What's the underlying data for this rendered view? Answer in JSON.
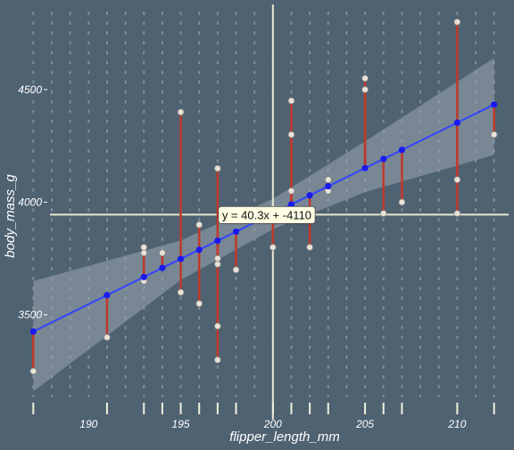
{
  "chart_data": {
    "type": "scatter",
    "title": "",
    "xlabel": "flipper_length_mm",
    "ylabel": "body_mass_g",
    "xlim": [
      186.5,
      212.5
    ],
    "ylim": [
      3130,
      4850
    ],
    "xticks": [
      190,
      195,
      200,
      205,
      210
    ],
    "yticks": [
      3500,
      4000,
      4500
    ],
    "x_tick_labels": [
      "190",
      "195",
      "200",
      "205",
      "210"
    ],
    "y_tick_labels": [
      "3500",
      "4000",
      "4500"
    ],
    "grid": false,
    "points": [
      {
        "x": 187,
        "y": 3250
      },
      {
        "x": 191,
        "y": 3400
      },
      {
        "x": 193,
        "y": 3650
      },
      {
        "x": 193,
        "y": 3775
      },
      {
        "x": 193,
        "y": 3800
      },
      {
        "x": 194,
        "y": 3775
      },
      {
        "x": 195,
        "y": 3600
      },
      {
        "x": 195,
        "y": 4400
      },
      {
        "x": 196,
        "y": 3550
      },
      {
        "x": 196,
        "y": 3900
      },
      {
        "x": 197,
        "y": 3300
      },
      {
        "x": 197,
        "y": 3450
      },
      {
        "x": 197,
        "y": 3725
      },
      {
        "x": 197,
        "y": 3750
      },
      {
        "x": 197,
        "y": 4150
      },
      {
        "x": 198,
        "y": 3700
      },
      {
        "x": 200,
        "y": 3800
      },
      {
        "x": 201,
        "y": 3975
      },
      {
        "x": 201,
        "y": 4050
      },
      {
        "x": 201,
        "y": 4300
      },
      {
        "x": 201,
        "y": 4450
      },
      {
        "x": 202,
        "y": 3800
      },
      {
        "x": 203,
        "y": 4050
      },
      {
        "x": 203,
        "y": 4100
      },
      {
        "x": 205,
        "y": 4500
      },
      {
        "x": 205,
        "y": 4550
      },
      {
        "x": 206,
        "y": 3950
      },
      {
        "x": 207,
        "y": 4000
      },
      {
        "x": 210,
        "y": 3950
      },
      {
        "x": 210,
        "y": 4100
      },
      {
        "x": 210,
        "y": 4800
      },
      {
        "x": 212,
        "y": 4300
      }
    ],
    "regression": {
      "slope": 40.3,
      "intercept": -4110,
      "x_range": [
        187,
        212
      ]
    },
    "confidence_band": [
      {
        "x": 187,
        "lo": 3160,
        "hi": 3650
      },
      {
        "x": 195,
        "lo": 3655,
        "hi": 3830
      },
      {
        "x": 200,
        "lo": 3880,
        "hi": 4015
      },
      {
        "x": 205,
        "lo": 4045,
        "hi": 4270
      },
      {
        "x": 212,
        "lo": 4210,
        "hi": 4640
      }
    ],
    "crosshair": {
      "x": 200,
      "y": 3945
    },
    "equation_label": "y = 40.3x + -4110",
    "colors": {
      "background": "#4f6272",
      "regression_line": "#3344ff",
      "fitted_point": "#1a1aee",
      "residual": "#c0392b",
      "point_fill": "#e9e3d7",
      "confidence_band": "#9aa6ae",
      "crosshair": "#e8e8d0",
      "rug": "#f0f0dc",
      "grid_dots": "#a8b4bc",
      "text": "#ffffff"
    }
  }
}
